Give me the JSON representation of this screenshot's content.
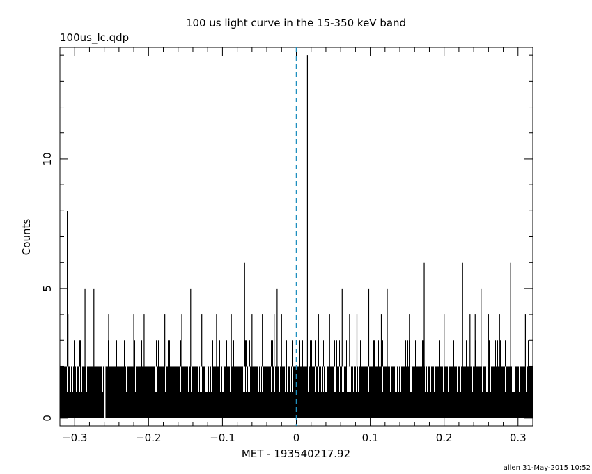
{
  "header": {
    "title": "100 us light curve in the 15-350 keV band",
    "filename": "100us_lc.qdp"
  },
  "footer": {
    "credit": "allen 31-May-2015 10:52"
  },
  "colors": {
    "trigger_line": "#1f8fbf",
    "data": "#000000",
    "frame": "#000000"
  },
  "chart_data": {
    "type": "line",
    "style": "histogram-step",
    "title": "100 us light curve in the 15-350 keV band",
    "xlabel": "MET - 193540217.92",
    "ylabel": "Counts",
    "xlim": [
      -0.32,
      0.32
    ],
    "ylim": [
      -0.3,
      14.3
    ],
    "x_ticks": [
      {
        "value": -0.3,
        "label": "−0.3"
      },
      {
        "value": -0.2,
        "label": "−0.2"
      },
      {
        "value": -0.1,
        "label": "−0.1"
      },
      {
        "value": 0,
        "label": "0"
      },
      {
        "value": 0.1,
        "label": "0.1"
      },
      {
        "value": 0.2,
        "label": "0.2"
      },
      {
        "value": 0.3,
        "label": "0.3"
      }
    ],
    "y_ticks": [
      {
        "value": 0,
        "label": "0"
      },
      {
        "value": 5,
        "label": "5"
      },
      {
        "value": 10,
        "label": "10"
      }
    ],
    "trigger_time": 0,
    "bin_width": 0.0001,
    "baseline_range": [
      0,
      2
    ],
    "occasional_range": [
      3,
      6
    ],
    "spikes": [
      {
        "x": -0.31,
        "y": 8
      },
      {
        "x": -0.309,
        "y": 4
      },
      {
        "x": -0.286,
        "y": 5
      },
      {
        "x": -0.274,
        "y": 5
      },
      {
        "x": -0.254,
        "y": 4
      },
      {
        "x": -0.22,
        "y": 4
      },
      {
        "x": -0.206,
        "y": 4
      },
      {
        "x": -0.178,
        "y": 4
      },
      {
        "x": -0.155,
        "y": 4
      },
      {
        "x": -0.143,
        "y": 5
      },
      {
        "x": -0.128,
        "y": 4
      },
      {
        "x": -0.108,
        "y": 4
      },
      {
        "x": -0.088,
        "y": 4
      },
      {
        "x": -0.07,
        "y": 6
      },
      {
        "x": -0.06,
        "y": 4
      },
      {
        "x": -0.046,
        "y": 4
      },
      {
        "x": -0.03,
        "y": 4
      },
      {
        "x": -0.026,
        "y": 5
      },
      {
        "x": -0.02,
        "y": 4
      },
      {
        "x": 0.015,
        "y": 14
      },
      {
        "x": 0.03,
        "y": 4
      },
      {
        "x": 0.045,
        "y": 4
      },
      {
        "x": 0.062,
        "y": 5
      },
      {
        "x": 0.072,
        "y": 4
      },
      {
        "x": 0.082,
        "y": 4
      },
      {
        "x": 0.098,
        "y": 5
      },
      {
        "x": 0.115,
        "y": 4
      },
      {
        "x": 0.123,
        "y": 5
      },
      {
        "x": 0.153,
        "y": 4
      },
      {
        "x": 0.173,
        "y": 6
      },
      {
        "x": 0.2,
        "y": 4
      },
      {
        "x": 0.225,
        "y": 6
      },
      {
        "x": 0.235,
        "y": 4
      },
      {
        "x": 0.242,
        "y": 4
      },
      {
        "x": 0.25,
        "y": 5
      },
      {
        "x": 0.26,
        "y": 4
      },
      {
        "x": 0.275,
        "y": 4
      },
      {
        "x": 0.29,
        "y": 6
      },
      {
        "x": 0.31,
        "y": 4
      }
    ],
    "dips": [
      {
        "x": -0.259,
        "y": 0
      }
    ],
    "grid": false,
    "legend": "none"
  }
}
